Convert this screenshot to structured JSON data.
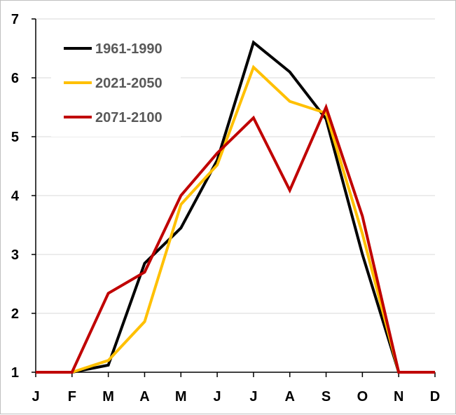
{
  "chart_data": {
    "type": "line",
    "categories": [
      "J",
      "F",
      "M",
      "A",
      "M",
      "J",
      "J",
      "A",
      "S",
      "O",
      "N",
      "D"
    ],
    "ylim": [
      1,
      7
    ],
    "yticks": [
      "1",
      "2",
      "3",
      "4",
      "5",
      "6",
      "7"
    ],
    "grid": true,
    "legend_position": "top-left",
    "series": [
      {
        "name": "1961-1990",
        "color": "#000000",
        "values": [
          1,
          1,
          1.12,
          2.85,
          3.45,
          4.6,
          6.6,
          6.1,
          5.3,
          3.0,
          1.0,
          1.0
        ]
      },
      {
        "name": "2021-2050",
        "color": "#FFC000",
        "values": [
          1,
          1,
          1.2,
          1.86,
          3.85,
          4.52,
          6.18,
          5.6,
          5.4,
          3.35,
          1.0,
          1.0
        ]
      },
      {
        "name": "2071-2100",
        "color": "#C00000",
        "values": [
          1,
          1,
          2.34,
          2.7,
          4.0,
          4.72,
          5.32,
          4.09,
          5.5,
          3.65,
          1.0,
          1.0
        ]
      }
    ]
  }
}
